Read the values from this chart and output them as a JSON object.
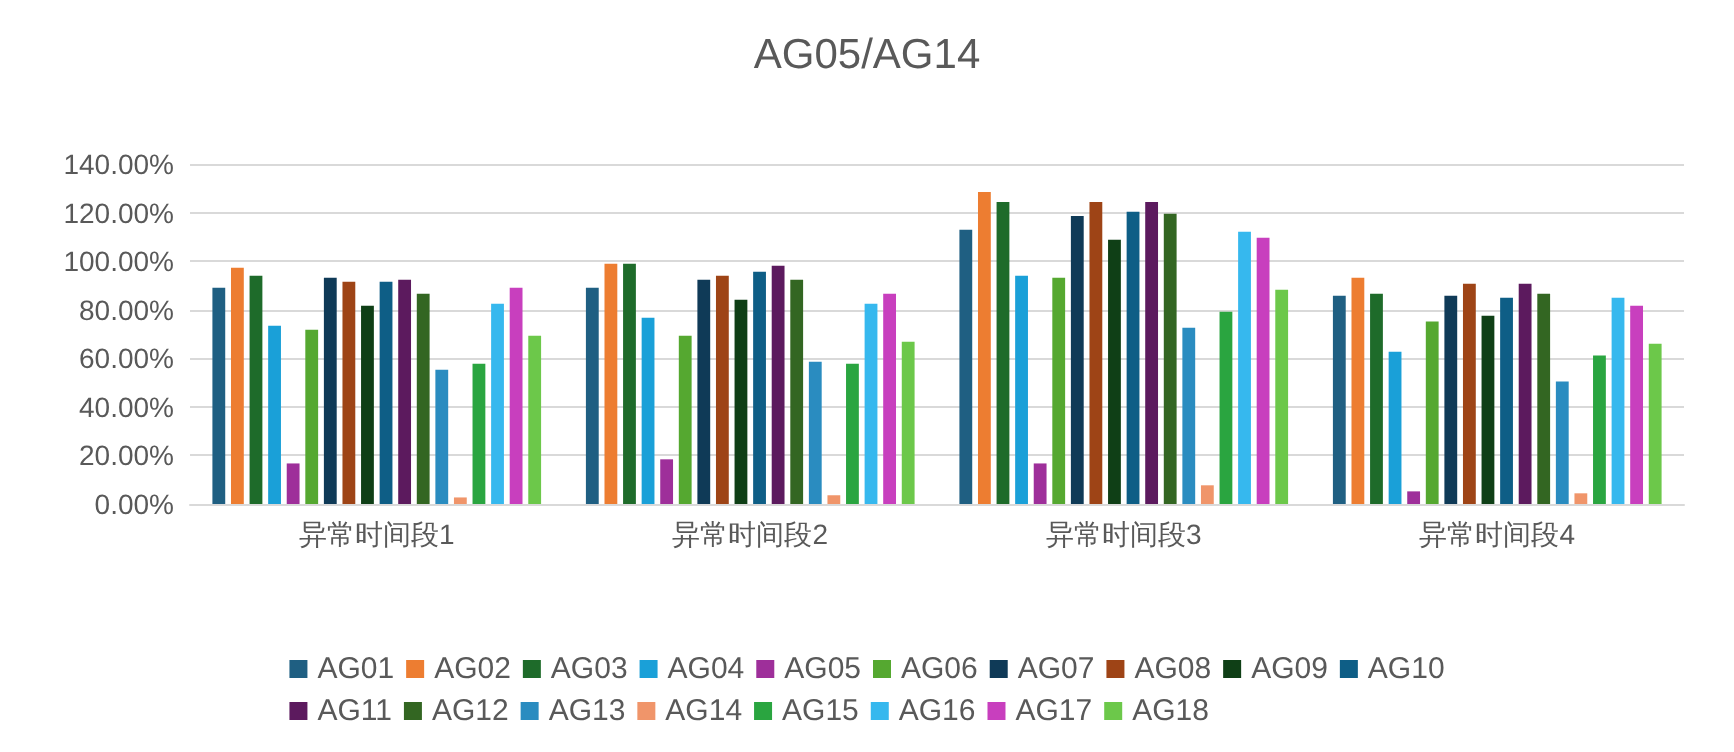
{
  "chart_data": {
    "type": "bar",
    "title": "AG05/AG14",
    "categories": [
      "异常时间段1",
      "异常时间段2",
      "异常时间段3",
      "异常时间段4"
    ],
    "series": [
      {
        "name": "AG01",
        "color": "#1f5f82",
        "values": [
          89,
          89,
          112.9,
          85.8
        ]
      },
      {
        "name": "AG02",
        "color": "#ed7d31",
        "values": [
          97.3,
          98.9,
          128.5,
          93.2
        ]
      },
      {
        "name": "AG03",
        "color": "#1e6b2a",
        "values": [
          94,
          98.9,
          124.4,
          86.6
        ]
      },
      {
        "name": "AG04",
        "color": "#1aa0d8",
        "values": [
          73.4,
          76.7,
          94,
          62.7
        ]
      },
      {
        "name": "AG05",
        "color": "#9e2f9a",
        "values": [
          16.7,
          18.4,
          16.7,
          5.2
        ]
      },
      {
        "name": "AG06",
        "color": "#55a830",
        "values": [
          71.8,
          69.3,
          93.2,
          75.1
        ]
      },
      {
        "name": "AG07",
        "color": "#0f3a57",
        "values": [
          93.2,
          92.3,
          118.6,
          85.8
        ]
      },
      {
        "name": "AG08",
        "color": "#9e4416",
        "values": [
          91.5,
          94,
          124.4,
          90.7
        ]
      },
      {
        "name": "AG09",
        "color": "#0f3f16",
        "values": [
          81.6,
          84.1,
          108.8,
          77.5
        ]
      },
      {
        "name": "AG10",
        "color": "#0e5e86",
        "values": [
          91.5,
          95.6,
          120.3,
          84.9
        ]
      },
      {
        "name": "AG11",
        "color": "#5c1a5e",
        "values": [
          92.3,
          98.1,
          124.4,
          90.7
        ]
      },
      {
        "name": "AG12",
        "color": "#336622",
        "values": [
          86.6,
          92.3,
          119.5,
          86.6
        ]
      },
      {
        "name": "AG13",
        "color": "#2a8cc0",
        "values": [
          55.3,
          58.6,
          72.6,
          50.4
        ]
      },
      {
        "name": "AG14",
        "color": "#f0956a",
        "values": [
          2.7,
          3.6,
          7.7,
          4.4
        ]
      },
      {
        "name": "AG15",
        "color": "#2aa540",
        "values": [
          57.8,
          57.8,
          79.2,
          61.1
        ]
      },
      {
        "name": "AG16",
        "color": "#36b8ee",
        "values": [
          82.5,
          82.5,
          112.1,
          84.9
        ]
      },
      {
        "name": "AG17",
        "color": "#c83fbe",
        "values": [
          89,
          86.6,
          109.6,
          81.6
        ]
      },
      {
        "name": "AG18",
        "color": "#6cc84a",
        "values": [
          69.3,
          66.8,
          88.2,
          66
        ]
      }
    ],
    "ylim": [
      0,
      140
    ],
    "yticks": [
      {
        "value": 0,
        "label": "0.00%"
      },
      {
        "value": 20,
        "label": "20.00%"
      },
      {
        "value": 40,
        "label": "40.00%"
      },
      {
        "value": 60,
        "label": "60.00%"
      },
      {
        "value": 80,
        "label": "80.00%"
      },
      {
        "value": 100,
        "label": "100.00%"
      },
      {
        "value": 120,
        "label": "120.00%"
      },
      {
        "value": 140,
        "label": "140.00%"
      }
    ],
    "grid": "y",
    "legend": "bottom"
  }
}
